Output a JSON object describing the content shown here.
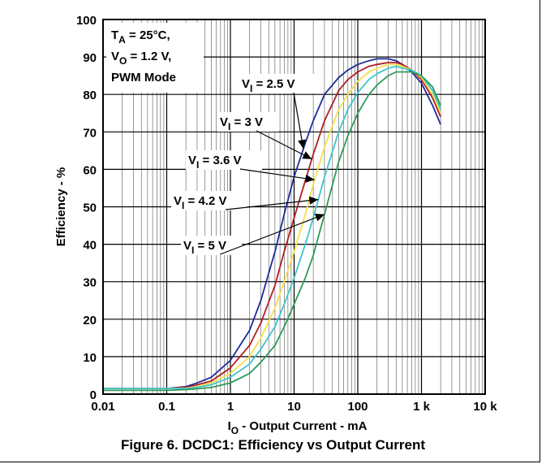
{
  "chart_data": {
    "type": "line",
    "x_scale": "log",
    "xlim": [
      0.01,
      10000
    ],
    "ylim": [
      0,
      100
    ],
    "grid": true,
    "xlabel_parts": [
      "I",
      "O",
      " - Output Current - mA"
    ],
    "ylabel": "Efficiency - %",
    "x_ticks": [
      {
        "value": 0.01,
        "label": "0.01"
      },
      {
        "value": 0.1,
        "label": "0.1"
      },
      {
        "value": 1,
        "label": "1"
      },
      {
        "value": 10,
        "label": "10"
      },
      {
        "value": 100,
        "label": "100"
      },
      {
        "value": 1000,
        "label": "1 k"
      },
      {
        "value": 10000,
        "label": "10 k"
      }
    ],
    "y_ticks": [
      0,
      10,
      20,
      30,
      40,
      50,
      60,
      70,
      80,
      90,
      100
    ],
    "conditions": [
      {
        "main": "T",
        "sub": "A",
        "rest": " = 25°C,"
      },
      {
        "main": "V",
        "sub": "O",
        "rest": " = 1.2 V,"
      },
      {
        "main": "PWM Mode",
        "sub": "",
        "rest": ""
      }
    ],
    "series": [
      {
        "name": "V_I = 2.5 V",
        "label_main": "V",
        "label_sub": "I",
        "label_rest": " = 2.5 V",
        "color": "#1f2a9a",
        "arrow_at": 14,
        "x": [
          0.01,
          0.1,
          0.2,
          0.3,
          0.5,
          1,
          2,
          3,
          5,
          7,
          10,
          15,
          20,
          30,
          50,
          70,
          100,
          150,
          200,
          300,
          400,
          500,
          700,
          1000,
          1500,
          2000
        ],
        "y": [
          1.5,
          1.5,
          2,
          3,
          4.5,
          9,
          17,
          25,
          38,
          48,
          58,
          67,
          73,
          80,
          84.5,
          86.5,
          88,
          89,
          89.5,
          89.5,
          89,
          88,
          86,
          83,
          77,
          72
        ]
      },
      {
        "name": "V_I = 3 V",
        "label_main": "V",
        "label_sub": "I",
        "label_rest": " = 3 V",
        "color": "#b01d24",
        "arrow_at": 19,
        "x": [
          0.01,
          0.1,
          0.2,
          0.3,
          0.5,
          1,
          2,
          3,
          5,
          7,
          10,
          15,
          20,
          30,
          50,
          70,
          100,
          150,
          200,
          300,
          400,
          500,
          700,
          1000,
          1500,
          2000
        ],
        "y": [
          1.5,
          1.5,
          1.8,
          2.5,
          3.5,
          7,
          13,
          19,
          29,
          38,
          47,
          57,
          64,
          73,
          81,
          84,
          86,
          87.5,
          88,
          88.5,
          88.5,
          88,
          86.5,
          84,
          79,
          74
        ]
      },
      {
        "name": "V_I = 3.6 V",
        "label_main": "V",
        "label_sub": "I",
        "label_rest": " = 3.6 V",
        "color": "#f2e14c",
        "arrow_at": 21,
        "x": [
          0.01,
          0.1,
          0.2,
          0.3,
          0.5,
          1,
          2,
          3,
          5,
          7,
          10,
          15,
          20,
          30,
          50,
          70,
          100,
          150,
          200,
          300,
          400,
          500,
          700,
          1000,
          1500,
          2000
        ],
        "y": [
          1.5,
          1.5,
          1.6,
          2,
          3,
          5.5,
          10,
          15,
          23,
          30,
          38,
          48,
          56,
          66,
          76,
          80,
          83.5,
          86,
          87,
          88,
          88,
          87.5,
          86.5,
          84.5,
          80,
          75
        ]
      },
      {
        "name": "V_I = 4.2 V",
        "label_main": "V",
        "label_sub": "I",
        "label_rest": " = 4.2 V",
        "color": "#3fc4c9",
        "arrow_at": 24,
        "x": [
          0.01,
          0.1,
          0.2,
          0.3,
          0.5,
          1,
          2,
          3,
          5,
          7,
          10,
          15,
          20,
          30,
          50,
          70,
          100,
          150,
          200,
          300,
          400,
          500,
          700,
          1000,
          1500,
          2000
        ],
        "y": [
          1.5,
          1.5,
          1.5,
          1.8,
          2.5,
          4.5,
          8,
          12,
          18,
          24,
          31,
          40,
          47,
          58,
          70,
          76,
          80.5,
          84,
          85.5,
          87,
          87.5,
          87,
          86.5,
          85,
          81,
          76
        ]
      },
      {
        "name": "V_I = 5 V",
        "label_main": "V",
        "label_sub": "I",
        "label_rest": " = 5 V",
        "color": "#2e9a5a",
        "arrow_at": 30,
        "x": [
          0.01,
          0.1,
          0.2,
          0.3,
          0.5,
          1,
          2,
          3,
          5,
          7,
          10,
          15,
          20,
          30,
          50,
          70,
          100,
          150,
          200,
          300,
          400,
          500,
          700,
          1000,
          1500,
          2000
        ],
        "y": [
          1,
          1,
          1.2,
          1.4,
          1.8,
          3,
          5.5,
          8.5,
          13,
          18,
          24,
          31,
          37,
          48,
          62,
          69,
          75,
          80,
          82.5,
          85,
          86,
          86,
          86,
          85,
          82,
          77
        ]
      }
    ]
  },
  "caption": "Figure 6. DCDC1: Efficiency vs Output Current"
}
